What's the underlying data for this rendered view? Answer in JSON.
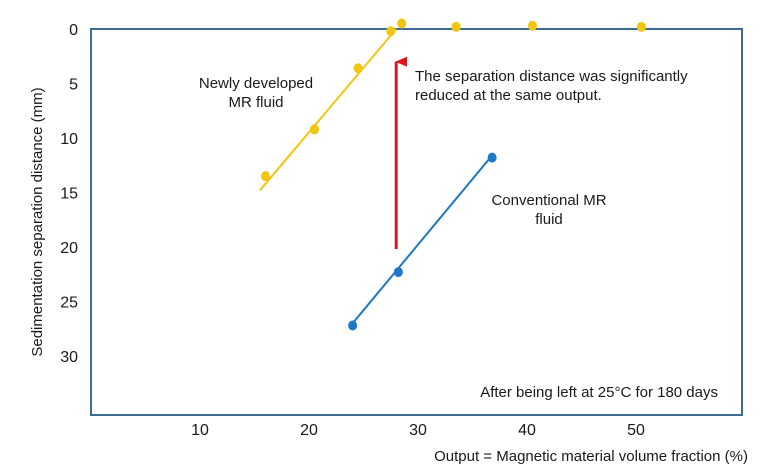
{
  "chart_data": {
    "type": "scatter",
    "xlabel": "Output = Magnetic material volume fraction (%)",
    "ylabel": "Sedimentation  separation distance (mm)",
    "x_ticks": [
      "10",
      "20",
      "30",
      "40",
      "50"
    ],
    "y_ticks": [
      "0",
      "5",
      "10",
      "15",
      "20",
      "25",
      "30"
    ],
    "xlim": [
      0,
      60
    ],
    "ylim": [
      0,
      35
    ],
    "y_inverted": true,
    "grid": false,
    "legend": "none",
    "series": [
      {
        "name": "Newly developed MR fluid",
        "color": "#f2c511",
        "points": [
          [
            16,
            13.5
          ],
          [
            20.5,
            9.2
          ],
          [
            24.5,
            3.6
          ],
          [
            27.5,
            0.2
          ],
          [
            28.5,
            -0.5
          ],
          [
            33.5,
            -0.2
          ],
          [
            40.5,
            -0.3
          ],
          [
            50.5,
            -0.2
          ]
        ],
        "fit_line": [
          [
            15.5,
            14.8
          ],
          [
            28,
            0.0
          ]
        ]
      },
      {
        "name": "Conventional  MR fluid",
        "color": "#1f77c8",
        "points": [
          [
            24,
            27.2
          ],
          [
            28.2,
            22.3
          ],
          [
            36.8,
            11.8
          ]
        ],
        "fit_line": [
          [
            24,
            27.0
          ],
          [
            36.8,
            11.6
          ]
        ]
      }
    ],
    "arrow": {
      "color": "#e0141e",
      "from": [
        28.0,
        20.2
      ],
      "to": [
        28.0,
        3.0
      ]
    },
    "annotations": {
      "new_fluid_line1": "Newly developed",
      "new_fluid_line2": "MR fluid",
      "conv_fluid_line1": "Conventional  MR",
      "conv_fluid_line2": "fluid",
      "separation_line1": "The separation distance was significantly",
      "separation_line2": "reduced at the same output.",
      "condition": "After being left at 25°C for 180 days"
    }
  }
}
